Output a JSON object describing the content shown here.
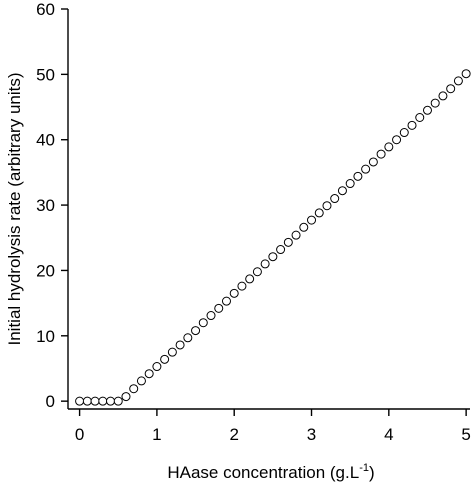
{
  "chart_data": {
    "type": "scatter",
    "title": "",
    "xlabel": "HAase concentration  (g.L",
    "xlabel_superscript": "-1",
    "xlabel_suffix": ")",
    "ylabel": "Initial hydrolysis rate (arbitrary units)",
    "xlim": [
      -0.15,
      5.05
    ],
    "ylim": [
      -1.2,
      60
    ],
    "x_ticks": [
      0,
      1,
      2,
      3,
      4,
      5
    ],
    "y_ticks": [
      0,
      10,
      20,
      30,
      40,
      50,
      60
    ],
    "grid": false,
    "legend": "none",
    "marker": "open-circle",
    "colors": {
      "marker_stroke": "#000000",
      "marker_fill": "#ffffff",
      "axis": "#000000"
    },
    "series": [
      {
        "x": [
          0,
          0.1,
          0.2,
          0.3,
          0.4,
          0.5,
          0.6,
          0.7,
          0.8,
          0.9,
          1.0,
          1.1,
          1.2,
          1.3,
          1.4,
          1.5,
          1.6,
          1.7,
          1.8,
          1.9,
          2.0,
          2.1,
          2.2,
          2.3,
          2.4,
          2.5,
          2.6,
          2.7,
          2.8,
          2.9,
          3.0,
          3.1,
          3.2,
          3.3,
          3.4,
          3.5,
          3.6,
          3.7,
          3.8,
          3.9,
          4.0,
          4.1,
          4.2,
          4.3,
          4.4,
          4.5,
          4.6,
          4.7,
          4.8,
          4.9,
          5.0
        ],
        "y": [
          0,
          0,
          0,
          0,
          0,
          0,
          0.7,
          1.9,
          3.1,
          4.2,
          5.3,
          6.4,
          7.5,
          8.6,
          9.7,
          10.8,
          12.0,
          13.1,
          14.2,
          15.3,
          16.5,
          17.6,
          18.7,
          19.8,
          21.0,
          22.1,
          23.2,
          24.3,
          25.4,
          26.6,
          27.7,
          28.8,
          29.9,
          31.0,
          32.2,
          33.3,
          34.4,
          35.5,
          36.6,
          37.8,
          38.9,
          40.0,
          41.1,
          42.2,
          43.4,
          44.5,
          45.6,
          46.7,
          47.8,
          49.0,
          50.1
        ]
      }
    ]
  }
}
